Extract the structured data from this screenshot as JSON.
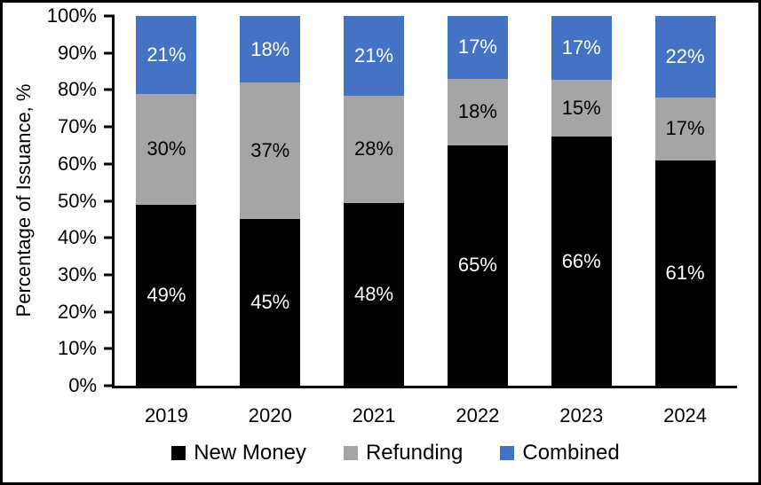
{
  "chart_data": {
    "type": "bar",
    "stacked": true,
    "title": "",
    "ylabel": "Percentage of Issuance, %",
    "xlabel": "",
    "categories": [
      "2019",
      "2020",
      "2021",
      "2022",
      "2023",
      "2024"
    ],
    "series": [
      {
        "name": "New Money",
        "color": "#000000",
        "label_color": "#ffffff",
        "values": [
          49,
          45,
          48,
          65,
          66,
          61
        ]
      },
      {
        "name": "Refunding",
        "color": "#a5a5a5",
        "label_color": "#000000",
        "values": [
          30,
          37,
          28,
          18,
          15,
          17
        ]
      },
      {
        "name": "Combined",
        "color": "#4472c4",
        "label_color": "#ffffff",
        "values": [
          21,
          18,
          21,
          17,
          17,
          22
        ]
      }
    ],
    "value_suffix": "%",
    "y_ticks": [
      "0%",
      "10%",
      "20%",
      "30%",
      "40%",
      "50%",
      "60%",
      "70%",
      "80%",
      "90%",
      "100%"
    ],
    "ylim": [
      0,
      100
    ],
    "grid": false,
    "legend_position": "bottom",
    "axis_color": "#000000",
    "background_color": "#ffffff"
  }
}
